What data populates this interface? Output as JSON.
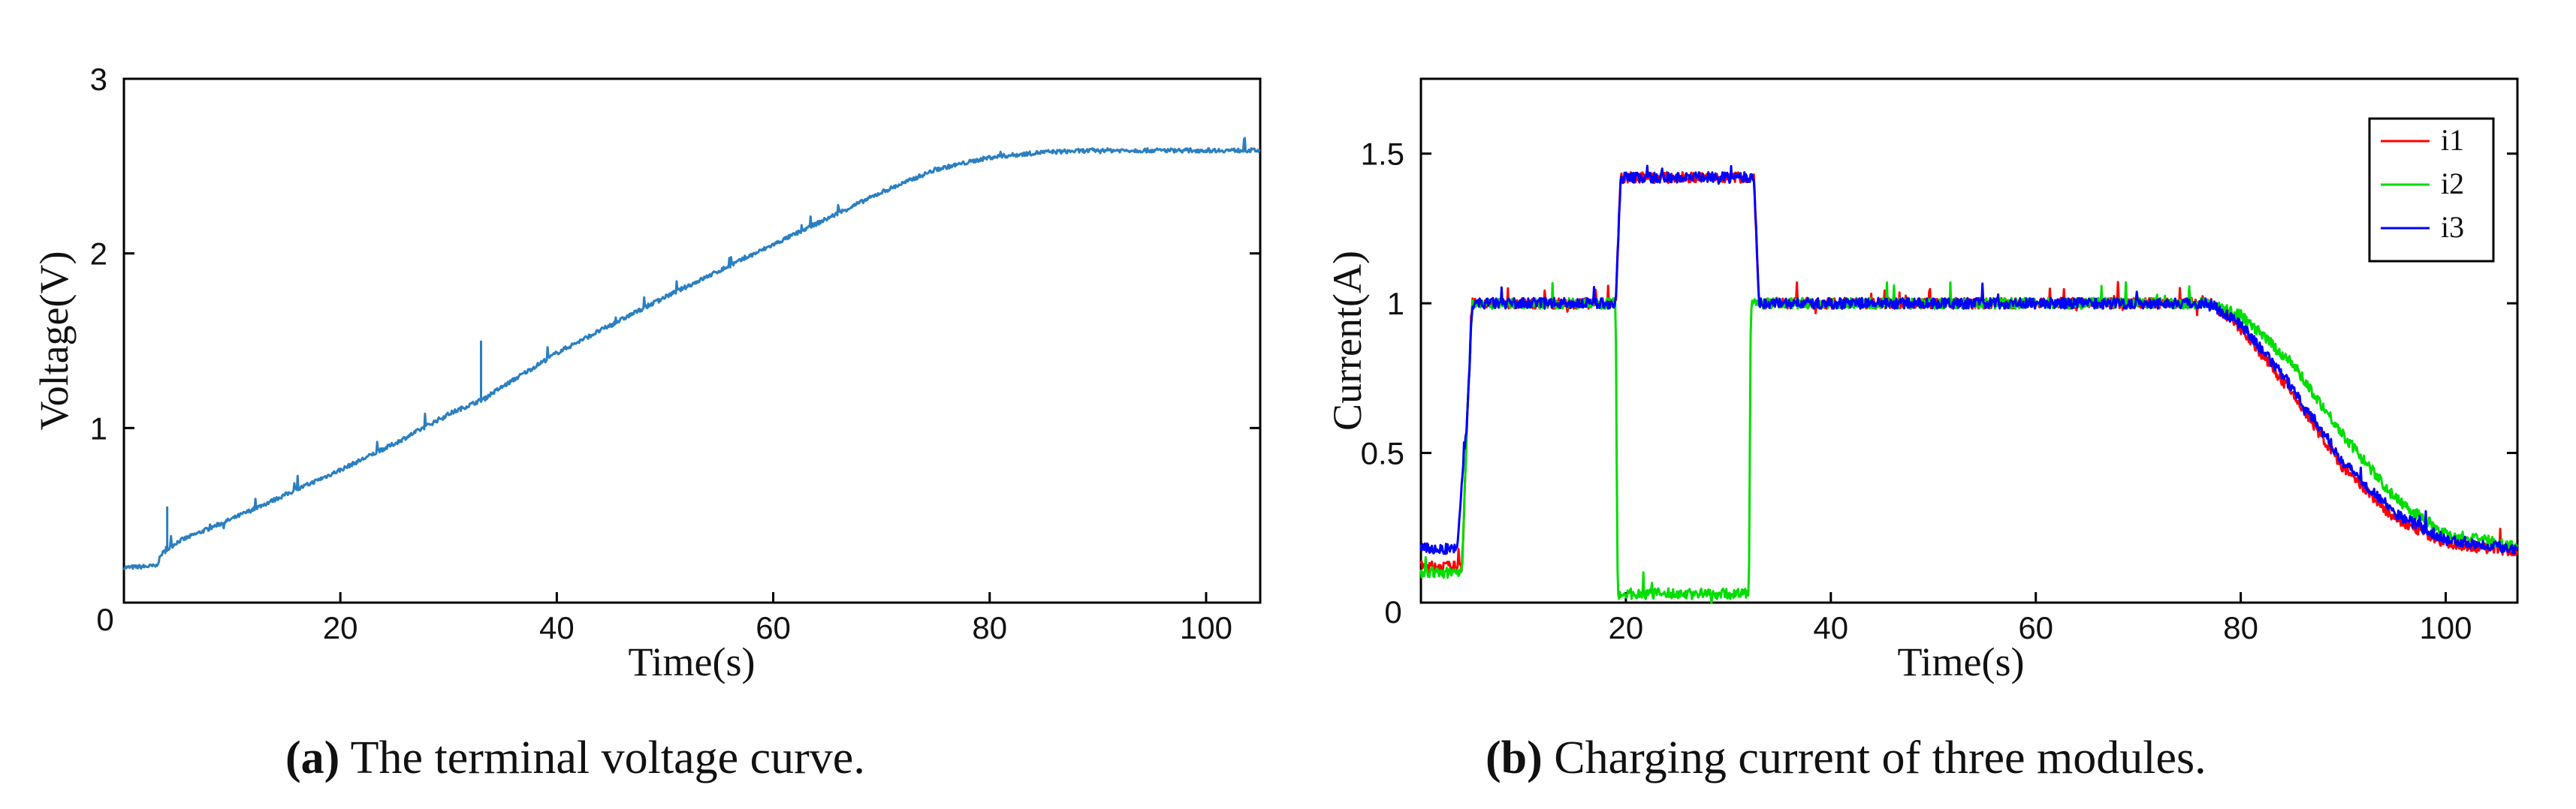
{
  "chart_data": [
    {
      "type": "line",
      "id": "a",
      "title": "",
      "xlabel": "Time(s)",
      "ylabel": "Voltage(V)",
      "xlim": [
        0,
        105
      ],
      "ylim": [
        0,
        3
      ],
      "xticks": [
        0,
        20,
        40,
        60,
        80,
        100
      ],
      "yticks": [
        1,
        2,
        3
      ],
      "origin_label": "0",
      "grid": false,
      "series": [
        {
          "name": "Voltage",
          "color": "#2a7fc1",
          "points": [
            [
              0,
              0.2
            ],
            [
              3,
              0.21
            ],
            [
              3.5,
              0.28
            ],
            [
              5,
              0.35
            ],
            [
              10,
              0.48
            ],
            [
              15,
              0.62
            ],
            [
              20,
              0.76
            ],
            [
              25,
              0.91
            ],
            [
              30,
              1.08
            ],
            [
              33,
              1.16
            ],
            [
              40,
              1.43
            ],
            [
              50,
              1.75
            ],
            [
              60,
              2.05
            ],
            [
              70,
              2.35
            ],
            [
              75,
              2.48
            ],
            [
              80,
              2.55
            ],
            [
              85,
              2.58
            ],
            [
              90,
              2.59
            ],
            [
              100,
              2.59
            ],
            [
              105,
              2.59
            ]
          ],
          "spikes": [
            [
              4,
              0.55
            ],
            [
              33,
              1.5
            ]
          ]
        }
      ]
    },
    {
      "type": "line",
      "id": "b",
      "title": "",
      "xlabel": "Time(s)",
      "ylabel": "Current(A)",
      "xlim": [
        0,
        107
      ],
      "ylim": [
        0,
        1.75
      ],
      "xticks": [
        20,
        40,
        60,
        80,
        100
      ],
      "yticks": [
        0.5,
        1,
        1.5
      ],
      "origin_label": "0",
      "grid": false,
      "legend_position": "top-right",
      "series": [
        {
          "name": "i1",
          "color": "#ff0000",
          "points": [
            [
              0,
              0.12
            ],
            [
              4,
              0.12
            ],
            [
              4.5,
              0.6
            ],
            [
              5,
              1.0
            ],
            [
              19,
              1.0
            ],
            [
              19.5,
              1.42
            ],
            [
              32.5,
              1.42
            ],
            [
              33,
              1.0
            ],
            [
              77,
              1.0
            ],
            [
              80,
              0.92
            ],
            [
              85,
              0.7
            ],
            [
              90,
              0.45
            ],
            [
              95,
              0.28
            ],
            [
              100,
              0.2
            ],
            [
              107,
              0.17
            ]
          ]
        },
        {
          "name": "i2",
          "color": "#00dd00",
          "points": [
            [
              0,
              0.1
            ],
            [
              4,
              0.1
            ],
            [
              4.5,
              0.6
            ],
            [
              5,
              1.0
            ],
            [
              19,
              1.0
            ],
            [
              19.2,
              0.03
            ],
            [
              32,
              0.03
            ],
            [
              32.2,
              1.0
            ],
            [
              77,
              1.0
            ],
            [
              80,
              0.96
            ],
            [
              85,
              0.8
            ],
            [
              90,
              0.56
            ],
            [
              95,
              0.35
            ],
            [
              100,
              0.23
            ],
            [
              107,
              0.19
            ]
          ]
        },
        {
          "name": "i3",
          "color": "#0000ff",
          "points": [
            [
              0,
              0.18
            ],
            [
              3.5,
              0.18
            ],
            [
              4.5,
              0.6
            ],
            [
              5,
              1.0
            ],
            [
              19,
              1.0
            ],
            [
              19.5,
              1.42
            ],
            [
              32.5,
              1.42
            ],
            [
              33,
              1.0
            ],
            [
              77,
              1.0
            ],
            [
              80,
              0.93
            ],
            [
              85,
              0.72
            ],
            [
              90,
              0.47
            ],
            [
              95,
              0.3
            ],
            [
              100,
              0.21
            ],
            [
              107,
              0.18
            ]
          ]
        }
      ]
    }
  ],
  "captions": [
    {
      "letter": "(a)",
      "text": " The terminal voltage curve."
    },
    {
      "letter": "(b)",
      "text": " Charging current of three modules."
    }
  ]
}
